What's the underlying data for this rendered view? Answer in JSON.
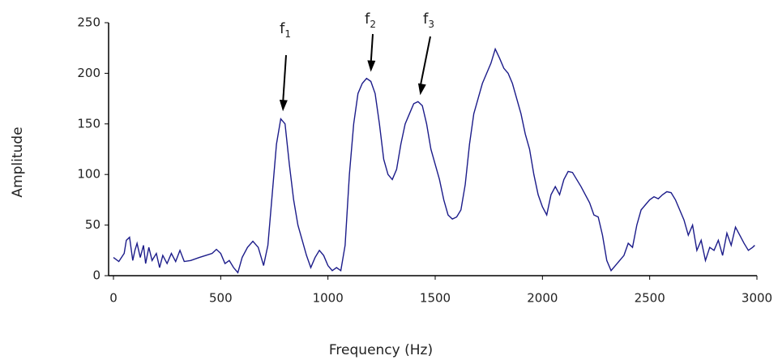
{
  "chart_data": {
    "type": "line",
    "x_label": "Frequency (Hz)",
    "y_label": "Amplitude",
    "xlim": [
      0,
      3000
    ],
    "ylim": [
      0,
      250
    ],
    "xticks": [
      0,
      500,
      1000,
      1500,
      2000,
      2500,
      3000
    ],
    "yticks": [
      0,
      50,
      100,
      150,
      200,
      250
    ],
    "grid": false,
    "annotations": [
      {
        "text": "f",
        "subscript": "1",
        "x": 790,
        "y": 156
      },
      {
        "text": "f",
        "subscript": "2",
        "x": 1200,
        "y": 195
      },
      {
        "text": "f",
        "subscript": "3",
        "x": 1430,
        "y": 172
      }
    ],
    "series": [
      {
        "color": "#1c1c8a",
        "x": [
          0,
          25,
          50,
          60,
          75,
          90,
          100,
          110,
          125,
          140,
          150,
          165,
          180,
          200,
          215,
          230,
          250,
          270,
          290,
          310,
          330,
          360,
          400,
          430,
          460,
          480,
          500,
          520,
          540,
          560,
          580,
          600,
          625,
          650,
          675,
          700,
          720,
          740,
          760,
          780,
          800,
          820,
          840,
          860,
          880,
          900,
          920,
          940,
          960,
          980,
          1000,
          1020,
          1040,
          1060,
          1080,
          1100,
          1120,
          1140,
          1160,
          1180,
          1200,
          1220,
          1240,
          1260,
          1280,
          1300,
          1320,
          1340,
          1360,
          1380,
          1400,
          1420,
          1440,
          1460,
          1480,
          1500,
          1520,
          1540,
          1560,
          1580,
          1600,
          1620,
          1640,
          1660,
          1680,
          1700,
          1720,
          1740,
          1760,
          1780,
          1800,
          1820,
          1840,
          1860,
          1880,
          1900,
          1920,
          1940,
          1960,
          1980,
          2000,
          2020,
          2040,
          2060,
          2080,
          2100,
          2120,
          2140,
          2160,
          2180,
          2200,
          2220,
          2240,
          2260,
          2280,
          2300,
          2320,
          2340,
          2360,
          2380,
          2400,
          2420,
          2440,
          2460,
          2480,
          2500,
          2520,
          2540,
          2560,
          2580,
          2600,
          2620,
          2640,
          2660,
          2680,
          2700,
          2720,
          2740,
          2760,
          2780,
          2800,
          2820,
          2840,
          2860,
          2880,
          2900,
          2920,
          2940,
          2960,
          2980,
          2990
        ],
        "values": [
          18,
          14,
          22,
          35,
          38,
          15,
          25,
          32,
          18,
          30,
          12,
          28,
          15,
          22,
          8,
          20,
          12,
          22,
          14,
          25,
          14,
          15,
          18,
          20,
          22,
          26,
          22,
          12,
          15,
          8,
          3,
          18,
          28,
          34,
          28,
          10,
          30,
          80,
          130,
          155,
          150,
          110,
          75,
          50,
          35,
          20,
          8,
          18,
          25,
          20,
          10,
          5,
          8,
          5,
          30,
          100,
          150,
          180,
          190,
          195,
          192,
          180,
          150,
          115,
          100,
          95,
          105,
          130,
          150,
          160,
          170,
          172,
          168,
          150,
          125,
          110,
          95,
          75,
          60,
          56,
          58,
          65,
          90,
          130,
          160,
          175,
          190,
          200,
          210,
          224,
          215,
          205,
          200,
          190,
          175,
          160,
          140,
          125,
          100,
          80,
          68,
          60,
          80,
          88,
          80,
          95,
          103,
          102,
          95,
          88,
          80,
          72,
          60,
          58,
          40,
          15,
          5,
          10,
          15,
          20,
          32,
          28,
          50,
          65,
          70,
          75,
          78,
          76,
          80,
          83,
          82,
          75,
          65,
          55,
          40,
          50,
          25,
          35,
          15,
          28,
          25,
          35,
          20,
          42,
          30,
          48,
          40,
          32,
          25,
          28,
          30
        ]
      }
    ]
  }
}
